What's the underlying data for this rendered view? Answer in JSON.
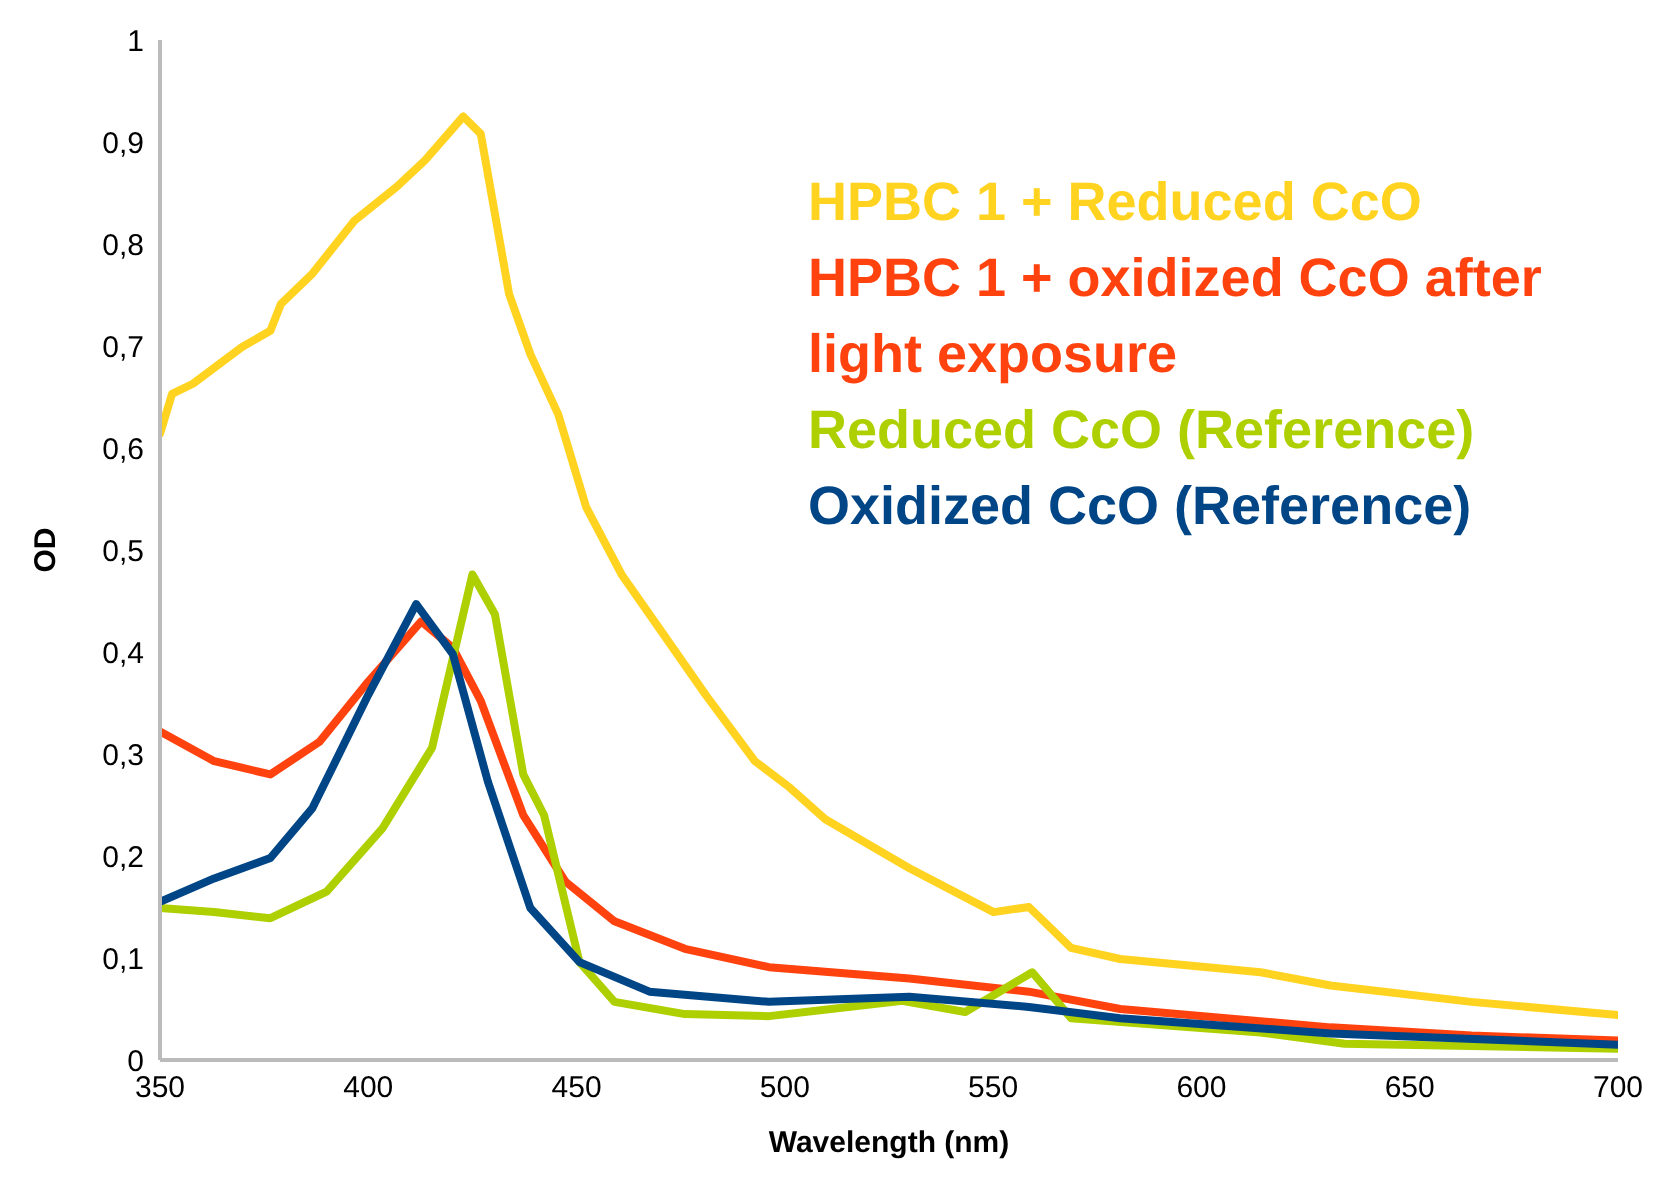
{
  "chart_data": {
    "type": "line",
    "xlabel": "Wavelength (nm)",
    "ylabel": "OD",
    "xlim": [
      350,
      700
    ],
    "ylim": [
      0,
      1
    ],
    "xticks": [
      350,
      400,
      450,
      500,
      550,
      600,
      650,
      700
    ],
    "yticks": [
      0,
      {
        "value": 0.1,
        "label": "0,1"
      },
      {
        "value": 0.2,
        "label": "0,2"
      },
      {
        "value": 0.3,
        "label": "0,3"
      },
      {
        "value": 0.4,
        "label": "0,4"
      },
      {
        "value": 0.5,
        "label": "0,5"
      },
      {
        "value": 0.6,
        "label": "0,6"
      },
      {
        "value": 0.7,
        "label": "0,7"
      },
      {
        "value": 0.8,
        "label": "0,8"
      },
      {
        "value": 0.9,
        "label": "0,9"
      },
      1
    ],
    "grid": false,
    "legend": "top right",
    "marker": "none",
    "line_style": "solid",
    "series": [
      {
        "name": "HPBC 1 + Reduced CcO",
        "color": "#ffd320",
        "x": [
          350,
          352.9,
          357.9,
          369.7,
          376.5,
          379,
          386.6,
          396.7,
          406.8,
          413.6,
          422.8,
          427,
          433.8,
          438.9,
          445.6,
          452.3,
          460.8,
          470.9,
          481,
          492.8,
          501.2,
          509.7,
          529.9,
          550.1,
          558.6,
          568.7,
          580.5,
          614.2,
          631,
          664.8,
          700
        ],
        "values": [
          0.614,
          0.653,
          0.663,
          0.699,
          0.715,
          0.741,
          0.771,
          0.823,
          0.856,
          0.882,
          0.925,
          0.908,
          0.751,
          0.692,
          0.633,
          0.542,
          0.476,
          0.417,
          0.358,
          0.293,
          0.267,
          0.236,
          0.188,
          0.145,
          0.15,
          0.11,
          0.099,
          0.086,
          0.073,
          0.057,
          0.044
        ]
      },
      {
        "name": "HPBC 1 + oxidized CcO after light exposure",
        "color": "#ff420e",
        "x": [
          350,
          363,
          376.5,
          388.3,
          400,
          412.7,
          420.3,
          427,
          437.2,
          447.3,
          459.1,
          476,
          496.2,
          529.9,
          558.6,
          580.5,
          631,
          664.8,
          700
        ],
        "values": [
          0.322,
          0.293,
          0.28,
          0.312,
          0.371,
          0.43,
          0.404,
          0.352,
          0.24,
          0.175,
          0.136,
          0.109,
          0.091,
          0.08,
          0.067,
          0.05,
          0.032,
          0.024,
          0.019
        ]
      },
      {
        "name": "Reduced CcO (Reference)",
        "color": "#aecf00",
        "x": [
          350,
          363,
          376.5,
          390,
          403.4,
          415.3,
          425,
          430.4,
          437.2,
          442.2,
          450.7,
          459.1,
          476,
          496.2,
          528.2,
          543.3,
          559.4,
          568.7,
          614.2,
          634.4,
          700
        ],
        "values": [
          0.149,
          0.145,
          0.139,
          0.165,
          0.227,
          0.306,
          0.476,
          0.437,
          0.28,
          0.24,
          0.096,
          0.057,
          0.045,
          0.043,
          0.058,
          0.047,
          0.086,
          0.041,
          0.027,
          0.016,
          0.011
        ]
      },
      {
        "name": "Oxidized CcO (Reference)",
        "color": "#004586",
        "x": [
          350,
          363,
          376.5,
          386.6,
          400,
          411.5,
          420.3,
          428.7,
          438.9,
          450.7,
          467.5,
          496.2,
          529.9,
          558.6,
          580.5,
          631,
          700
        ],
        "values": [
          0.155,
          0.178,
          0.198,
          0.247,
          0.358,
          0.447,
          0.398,
          0.273,
          0.149,
          0.096,
          0.067,
          0.057,
          0.062,
          0.052,
          0.041,
          0.026,
          0.015
        ]
      }
    ]
  }
}
